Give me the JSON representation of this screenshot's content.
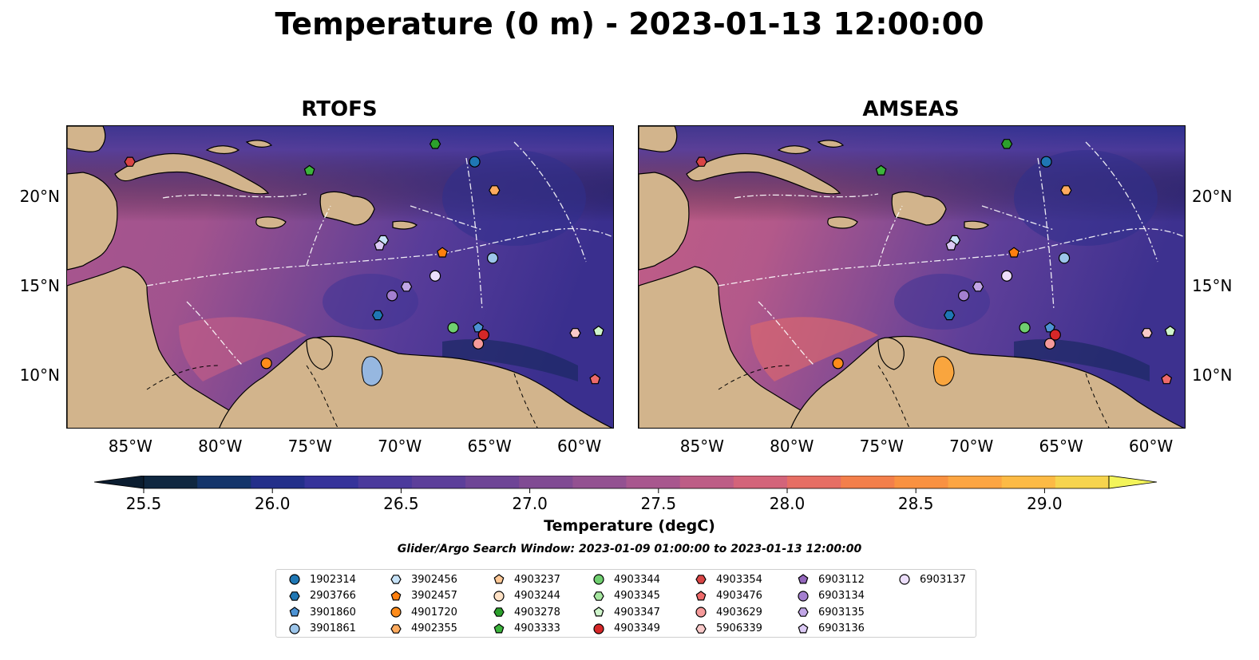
{
  "title": "Temperature (0 m) - 2023-01-13 12:00:00",
  "panels": [
    {
      "name": "RTOFS"
    },
    {
      "name": "AMSEAS"
    }
  ],
  "lat_ticks": [
    "20°N",
    "15°N",
    "10°N"
  ],
  "lon_ticks": [
    "85°W",
    "80°W",
    "75°W",
    "70°W",
    "65°W",
    "60°W"
  ],
  "colorbar": {
    "label": "Temperature (degC)",
    "ticks": [
      "25.5",
      "26.0",
      "26.5",
      "27.0",
      "27.5",
      "28.0",
      "28.5",
      "29.0"
    ],
    "colors": [
      "#0f2740",
      "#13346a",
      "#232f8a",
      "#36339a",
      "#4b3a9c",
      "#5c3f9a",
      "#6e4596",
      "#804b93",
      "#935191",
      "#a8578e",
      "#bd5d86",
      "#d3647a",
      "#e66e64",
      "#f37f4b",
      "#f99141",
      "#fca542",
      "#fcba45",
      "#f6d44e"
    ],
    "under_color": "#0b1d30",
    "over_color": "#f3f45a"
  },
  "search_window": "Glider/Argo Search Window: 2023-01-09 01:00:00 to 2023-01-13 12:00:00",
  "legend": [
    {
      "id": "1902314",
      "color": "#1f77b4",
      "marker": "circle"
    },
    {
      "id": "2903766",
      "color": "#1f77b4",
      "marker": "hexagon"
    },
    {
      "id": "3901860",
      "color": "#4d93d4",
      "marker": "pentagon"
    },
    {
      "id": "3901861",
      "color": "#9cc5ea",
      "marker": "circle"
    },
    {
      "id": "3902456",
      "color": "#c6e2f7",
      "marker": "hexagon"
    },
    {
      "id": "3902457",
      "color": "#ff7f0e",
      "marker": "pentagon"
    },
    {
      "id": "4901720",
      "color": "#ff8c1a",
      "marker": "circle"
    },
    {
      "id": "4902355",
      "color": "#ffab5e",
      "marker": "hexagon"
    },
    {
      "id": "4903237",
      "color": "#ffc896",
      "marker": "pentagon"
    },
    {
      "id": "4903244",
      "color": "#ffe2c6",
      "marker": "circle"
    },
    {
      "id": "4903278",
      "color": "#2ca02c",
      "marker": "hexagon"
    },
    {
      "id": "4903333",
      "color": "#3cb43c",
      "marker": "pentagon"
    },
    {
      "id": "4903344",
      "color": "#6fcf6f",
      "marker": "circle"
    },
    {
      "id": "4903345",
      "color": "#a6e6a0",
      "marker": "hexagon"
    },
    {
      "id": "4903347",
      "color": "#cff5cb",
      "marker": "pentagon"
    },
    {
      "id": "4903349",
      "color": "#d62728",
      "marker": "circle"
    },
    {
      "id": "4903354",
      "color": "#d94545",
      "marker": "hexagon"
    },
    {
      "id": "4903476",
      "color": "#ee6a6a",
      "marker": "pentagon"
    },
    {
      "id": "4903629",
      "color": "#f59a9a",
      "marker": "circle"
    },
    {
      "id": "5906339",
      "color": "#f9c9c9",
      "marker": "hexagon"
    },
    {
      "id": "6903112",
      "color": "#9467bd",
      "marker": "pentagon"
    },
    {
      "id": "6903134",
      "color": "#a47fd0",
      "marker": "circle"
    },
    {
      "id": "6903135",
      "color": "#c1a6e6",
      "marker": "hexagon"
    },
    {
      "id": "6903136",
      "color": "#dccaf5",
      "marker": "pentagon"
    },
    {
      "id": "6903137",
      "color": "#ecdefb",
      "marker": "circle"
    }
  ],
  "floats": [
    {
      "id": "4903354",
      "lon": -85.0,
      "lat": 22.0
    },
    {
      "id": "4903278",
      "lon": -68.0,
      "lat": 23.0
    },
    {
      "id": "4903333",
      "lon": -75.0,
      "lat": 21.5
    },
    {
      "id": "1902314",
      "lon": -65.8,
      "lat": 22.0
    },
    {
      "id": "4902355",
      "lon": -64.7,
      "lat": 20.4
    },
    {
      "id": "3902457",
      "lon": -67.6,
      "lat": 16.9
    },
    {
      "id": "3902456",
      "lon": -70.9,
      "lat": 17.6
    },
    {
      "id": "6903136",
      "lon": -71.1,
      "lat": 17.3
    },
    {
      "id": "3901861",
      "lon": -64.8,
      "lat": 16.6
    },
    {
      "id": "6903137",
      "lon": -68.0,
      "lat": 15.6
    },
    {
      "id": "6903135",
      "lon": -69.6,
      "lat": 15.0
    },
    {
      "id": "6903134",
      "lon": -70.4,
      "lat": 14.5
    },
    {
      "id": "2903766",
      "lon": -71.2,
      "lat": 13.4
    },
    {
      "id": "4903344",
      "lon": -67.0,
      "lat": 12.7
    },
    {
      "id": "3901860",
      "lon": -65.6,
      "lat": 12.7
    },
    {
      "id": "4903349",
      "lon": -65.3,
      "lat": 12.3
    },
    {
      "id": "4903629",
      "lon": -65.6,
      "lat": 11.8
    },
    {
      "id": "4901720",
      "lon": -77.4,
      "lat": 10.7
    },
    {
      "id": "5906339",
      "lon": -60.2,
      "lat": 12.4
    },
    {
      "id": "4903347",
      "lon": -58.9,
      "lat": 12.5
    },
    {
      "id": "4903476",
      "lon": -59.1,
      "lat": 9.8
    }
  ]
}
